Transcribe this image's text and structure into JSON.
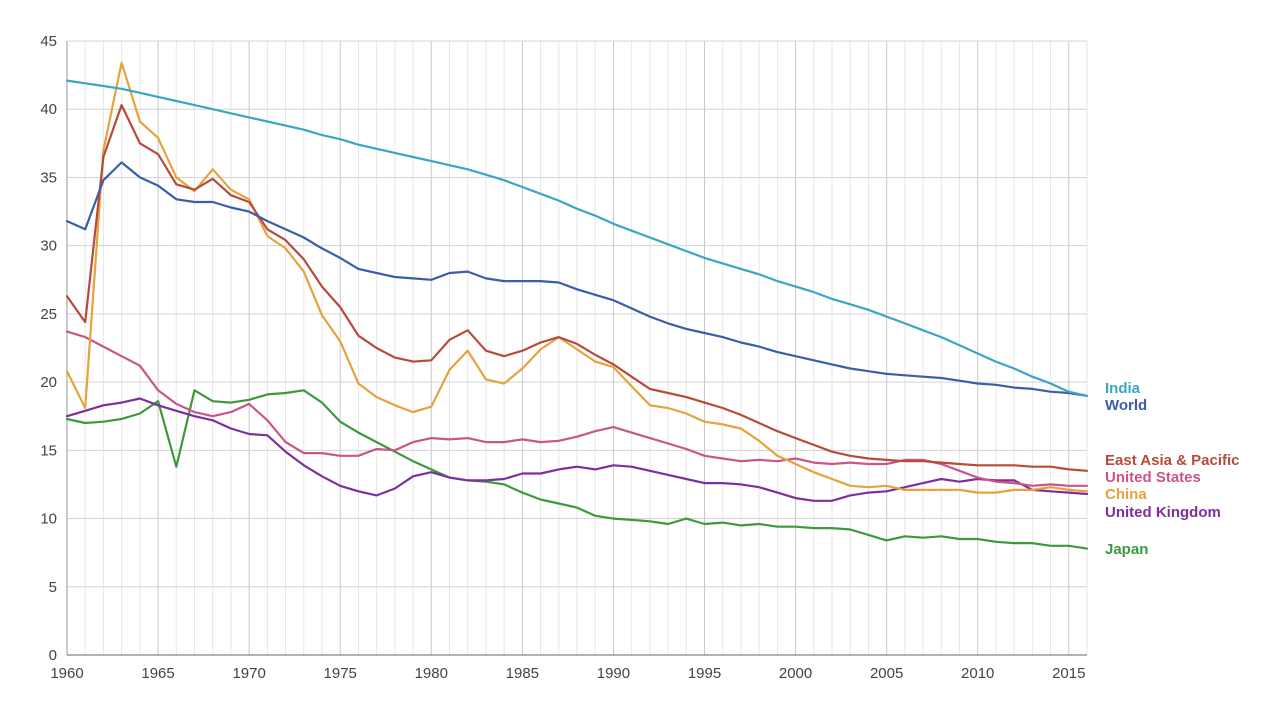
{
  "chart_data": {
    "type": "line",
    "title": "",
    "xlabel": "",
    "ylabel": "",
    "xlim": [
      1960,
      2016
    ],
    "ylim": [
      0,
      45
    ],
    "grid": true,
    "legend_position": "right",
    "x_ticks": [
      1960,
      1965,
      1970,
      1975,
      1980,
      1985,
      1990,
      1995,
      2000,
      2005,
      2010,
      2015
    ],
    "y_ticks": [
      0,
      5,
      10,
      15,
      20,
      25,
      30,
      35,
      40,
      45
    ],
    "x": [
      1960,
      1961,
      1962,
      1963,
      1964,
      1965,
      1966,
      1967,
      1968,
      1969,
      1970,
      1971,
      1972,
      1973,
      1974,
      1975,
      1976,
      1977,
      1978,
      1979,
      1980,
      1981,
      1982,
      1983,
      1984,
      1985,
      1986,
      1987,
      1988,
      1989,
      1990,
      1991,
      1992,
      1993,
      1994,
      1995,
      1996,
      1997,
      1998,
      1999,
      2000,
      2001,
      2002,
      2003,
      2004,
      2005,
      2006,
      2007,
      2008,
      2009,
      2010,
      2011,
      2012,
      2013,
      2014,
      2015,
      2016
    ],
    "series": [
      {
        "name": "India",
        "color": "#3aa6c4",
        "values": [
          42.1,
          41.9,
          41.7,
          41.5,
          41.2,
          40.9,
          40.6,
          40.3,
          40.0,
          39.7,
          39.4,
          39.1,
          38.8,
          38.5,
          38.1,
          37.8,
          37.4,
          37.1,
          36.8,
          36.5,
          36.2,
          35.9,
          35.6,
          35.2,
          34.8,
          34.3,
          33.8,
          33.3,
          32.7,
          32.2,
          31.6,
          31.1,
          30.6,
          30.1,
          29.6,
          29.1,
          28.7,
          28.3,
          27.9,
          27.4,
          27.0,
          26.6,
          26.1,
          25.7,
          25.3,
          24.8,
          24.3,
          23.8,
          23.3,
          22.7,
          22.1,
          21.5,
          21.0,
          20.4,
          19.9,
          19.3,
          19.0
        ]
      },
      {
        "name": "World",
        "color": "#3a5ea8",
        "values": [
          31.8,
          31.2,
          34.8,
          36.1,
          35.0,
          34.4,
          33.4,
          33.2,
          33.2,
          32.8,
          32.5,
          31.8,
          31.2,
          30.6,
          29.8,
          29.1,
          28.3,
          28.0,
          27.7,
          27.6,
          27.5,
          28.0,
          28.1,
          27.6,
          27.4,
          27.4,
          27.4,
          27.3,
          26.8,
          26.4,
          26.0,
          25.4,
          24.8,
          24.3,
          23.9,
          23.6,
          23.3,
          22.9,
          22.6,
          22.2,
          21.9,
          21.6,
          21.3,
          21.0,
          20.8,
          20.6,
          20.5,
          20.4,
          20.3,
          20.1,
          19.9,
          19.8,
          19.6,
          19.5,
          19.3,
          19.2,
          19.0
        ]
      },
      {
        "name": "East Asia & Pacific",
        "color": "#b84a3a",
        "values": [
          26.3,
          24.4,
          36.5,
          40.3,
          37.5,
          36.7,
          34.5,
          34.1,
          34.9,
          33.7,
          33.2,
          31.2,
          30.4,
          29.0,
          27.0,
          25.5,
          23.4,
          22.5,
          21.8,
          21.5,
          21.6,
          23.1,
          23.8,
          22.3,
          21.9,
          22.3,
          22.9,
          23.3,
          22.8,
          22.0,
          21.3,
          20.4,
          19.5,
          19.2,
          18.9,
          18.5,
          18.1,
          17.6,
          17.0,
          16.4,
          15.9,
          15.4,
          14.9,
          14.6,
          14.4,
          14.3,
          14.2,
          14.2,
          14.1,
          14.0,
          13.9,
          13.9,
          13.9,
          13.8,
          13.8,
          13.6,
          13.5
        ]
      },
      {
        "name": "United States",
        "color": "#c9558a",
        "values": [
          23.7,
          23.3,
          22.6,
          21.9,
          21.2,
          19.4,
          18.4,
          17.8,
          17.5,
          17.8,
          18.4,
          17.2,
          15.6,
          14.8,
          14.8,
          14.6,
          14.6,
          15.1,
          15.0,
          15.6,
          15.9,
          15.8,
          15.9,
          15.6,
          15.6,
          15.8,
          15.6,
          15.7,
          16.0,
          16.4,
          16.7,
          16.3,
          15.9,
          15.5,
          15.1,
          14.6,
          14.4,
          14.2,
          14.3,
          14.2,
          14.4,
          14.1,
          14.0,
          14.1,
          14.0,
          14.0,
          14.3,
          14.3,
          14.0,
          13.5,
          13.0,
          12.7,
          12.6,
          12.4,
          12.5,
          12.4,
          12.4
        ]
      },
      {
        "name": "China",
        "color": "#e6a23c",
        "values": [
          20.8,
          18.1,
          37.0,
          43.4,
          39.1,
          37.9,
          35.0,
          34.0,
          35.6,
          34.1,
          33.4,
          30.7,
          29.8,
          28.1,
          24.9,
          23.0,
          19.9,
          18.9,
          18.3,
          17.8,
          18.2,
          20.9,
          22.3,
          20.2,
          19.9,
          21.0,
          22.4,
          23.3,
          22.4,
          21.5,
          21.1,
          19.7,
          18.3,
          18.1,
          17.7,
          17.1,
          16.9,
          16.6,
          15.7,
          14.6,
          14.0,
          13.4,
          12.9,
          12.4,
          12.3,
          12.4,
          12.1,
          12.1,
          12.1,
          12.1,
          11.9,
          11.9,
          12.1,
          12.1,
          12.3,
          12.1,
          12.0
        ]
      },
      {
        "name": "United Kingdom",
        "color": "#7e2f9c",
        "values": [
          17.5,
          17.9,
          18.3,
          18.5,
          18.8,
          18.3,
          17.9,
          17.5,
          17.2,
          16.6,
          16.2,
          16.1,
          14.9,
          13.9,
          13.1,
          12.4,
          12.0,
          11.7,
          12.2,
          13.1,
          13.4,
          13.0,
          12.8,
          12.8,
          12.9,
          13.3,
          13.3,
          13.6,
          13.8,
          13.6,
          13.9,
          13.8,
          13.5,
          13.2,
          12.9,
          12.6,
          12.6,
          12.5,
          12.3,
          11.9,
          11.5,
          11.3,
          11.3,
          11.7,
          11.9,
          12.0,
          12.3,
          12.6,
          12.9,
          12.7,
          12.9,
          12.8,
          12.8,
          12.1,
          12.0,
          11.9,
          11.8
        ]
      },
      {
        "name": "Japan",
        "color": "#3c9a3c",
        "values": [
          17.3,
          17.0,
          17.1,
          17.3,
          17.7,
          18.6,
          13.8,
          19.4,
          18.6,
          18.5,
          18.7,
          19.1,
          19.2,
          19.4,
          18.5,
          17.1,
          16.3,
          15.6,
          14.9,
          14.2,
          13.6,
          13.0,
          12.8,
          12.7,
          12.5,
          11.9,
          11.4,
          11.1,
          10.8,
          10.2,
          10.0,
          9.9,
          9.8,
          9.6,
          10.0,
          9.6,
          9.7,
          9.5,
          9.6,
          9.4,
          9.4,
          9.3,
          9.3,
          9.2,
          8.8,
          8.4,
          8.7,
          8.6,
          8.7,
          8.5,
          8.5,
          8.3,
          8.2,
          8.2,
          8.0,
          8.0,
          7.8
        ]
      }
    ]
  }
}
